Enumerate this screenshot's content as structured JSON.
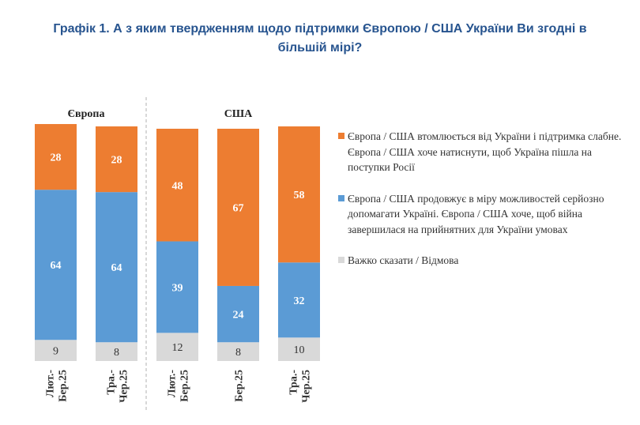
{
  "title_line1": "Графік 1. А з яким твердженням щодо підтримки Європою / США України Ви згодні в",
  "title_line2": "більшій мірі?",
  "chart_data": {
    "type": "bar",
    "stacked": true,
    "groups": [
      {
        "label": "Європа",
        "bars": [
          0,
          1
        ]
      },
      {
        "label": "США",
        "bars": [
          2,
          3,
          4
        ]
      }
    ],
    "categories": [
      [
        "Лют.-",
        "Бер.25"
      ],
      [
        "Тра.-",
        "Чер.25"
      ],
      [
        "Лют.-",
        "Бер.25"
      ],
      [
        "Бер.25"
      ],
      [
        "Тра.-",
        "Чер.25"
      ]
    ],
    "series": [
      {
        "name": "Важко сказати / Відмова",
        "color": "#d9d9d9",
        "values": [
          9,
          8,
          12,
          8,
          10
        ]
      },
      {
        "name": "Європа / США продовжує в міру можливостей серйозно допомагати Україні. Європа / США хоче, щоб війна завершилася на прийнятних для України умовах",
        "color": "#5b9bd5",
        "values": [
          64,
          64,
          39,
          24,
          32
        ]
      },
      {
        "name": "Європа / США втомлюється від України і підтримка слабне. Європа / США хоче натиснути, щоб Україна пішла на поступки Росії",
        "color": "#ed7d31",
        "values": [
          28,
          28,
          48,
          67,
          58
        ]
      }
    ],
    "legend_position": "right",
    "grid": false
  }
}
